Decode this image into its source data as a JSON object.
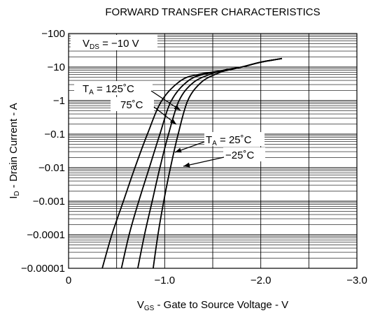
{
  "chart_data": {
    "type": "line",
    "title": "FORWARD TRANSFER CHARACTERISTICS",
    "xlabel": {
      "symbol": "V",
      "sub": "GS",
      "text": " - Gate to Source Voltage - V"
    },
    "ylabel": {
      "symbol": "I",
      "sub": "D",
      "text": " - Drain Current - A"
    },
    "x_axis": {
      "ticks": [
        0,
        -1.0,
        -2.0,
        -3.0
      ],
      "tick_labels": [
        "0",
        "−1.0",
        "−2.0",
        "−3.0"
      ],
      "range": [
        0,
        -3.0
      ],
      "minor_step": -0.5,
      "scale": "linear"
    },
    "y_axis": {
      "scale": "log",
      "range": [
        -1e-05,
        -100
      ],
      "tick_labels": [
        "−100",
        "−10",
        "−1",
        "−0.1",
        "−0.01",
        "−0.001",
        "−0.0001",
        "−0.00001"
      ]
    },
    "grid": true,
    "condition": {
      "symbol": "V",
      "sub": "DS",
      "text": " = −10 V"
    },
    "series": [
      {
        "name": "TA = 125°C",
        "points": [
          [
            -0.35,
            -1e-05
          ],
          [
            -0.45,
            -0.0001
          ],
          [
            -0.57,
            -0.001
          ],
          [
            -0.69,
            -0.01
          ],
          [
            -0.82,
            -0.1
          ],
          [
            -0.97,
            -1
          ],
          [
            -1.17,
            -4
          ],
          [
            -1.35,
            -6
          ],
          [
            -1.55,
            -7.5
          ],
          [
            -1.8,
            -10
          ],
          [
            -2.0,
            -14
          ],
          [
            -2.22,
            -18
          ]
        ]
      },
      {
        "name": "75°C",
        "points": [
          [
            -0.55,
            -1e-05
          ],
          [
            -0.63,
            -0.0001
          ],
          [
            -0.73,
            -0.001
          ],
          [
            -0.84,
            -0.01
          ],
          [
            -0.95,
            -0.1
          ],
          [
            -1.07,
            -1
          ],
          [
            -1.25,
            -4
          ],
          [
            -1.45,
            -6.5
          ],
          [
            -1.65,
            -8
          ],
          [
            -1.8,
            -10
          ],
          [
            -2.0,
            -14
          ],
          [
            -2.22,
            -18
          ]
        ]
      },
      {
        "name": "TA = 25°C",
        "points": [
          [
            -0.72,
            -1e-05
          ],
          [
            -0.79,
            -0.0001
          ],
          [
            -0.87,
            -0.001
          ],
          [
            -0.95,
            -0.01
          ],
          [
            -1.04,
            -0.1
          ],
          [
            -1.15,
            -1
          ],
          [
            -1.3,
            -3.5
          ],
          [
            -1.5,
            -6.5
          ],
          [
            -1.65,
            -8.5
          ],
          [
            -1.8,
            -10
          ],
          [
            -2.0,
            -14
          ],
          [
            -2.22,
            -18
          ]
        ]
      },
      {
        "name": "−25°C",
        "points": [
          [
            -0.88,
            -1e-05
          ],
          [
            -0.93,
            -0.0001
          ],
          [
            -0.99,
            -0.001
          ],
          [
            -1.06,
            -0.01
          ],
          [
            -1.14,
            -0.1
          ],
          [
            -1.24,
            -1
          ],
          [
            -1.38,
            -3.5
          ],
          [
            -1.55,
            -6.5
          ],
          [
            -1.68,
            -8.5
          ],
          [
            -1.8,
            -10
          ],
          [
            -2.0,
            -14
          ],
          [
            -2.22,
            -18
          ]
        ]
      }
    ],
    "annotations": [
      {
        "symbol": "T",
        "sub": "A",
        "text": " = 125˚C"
      },
      {
        "text": "75˚C"
      },
      {
        "symbol": "T",
        "sub": "A",
        "text": " = 25˚C"
      },
      {
        "text": "−25˚C"
      }
    ],
    "colors": {
      "line": "#000000",
      "grid": "#000000",
      "background": "#ffffff"
    }
  }
}
